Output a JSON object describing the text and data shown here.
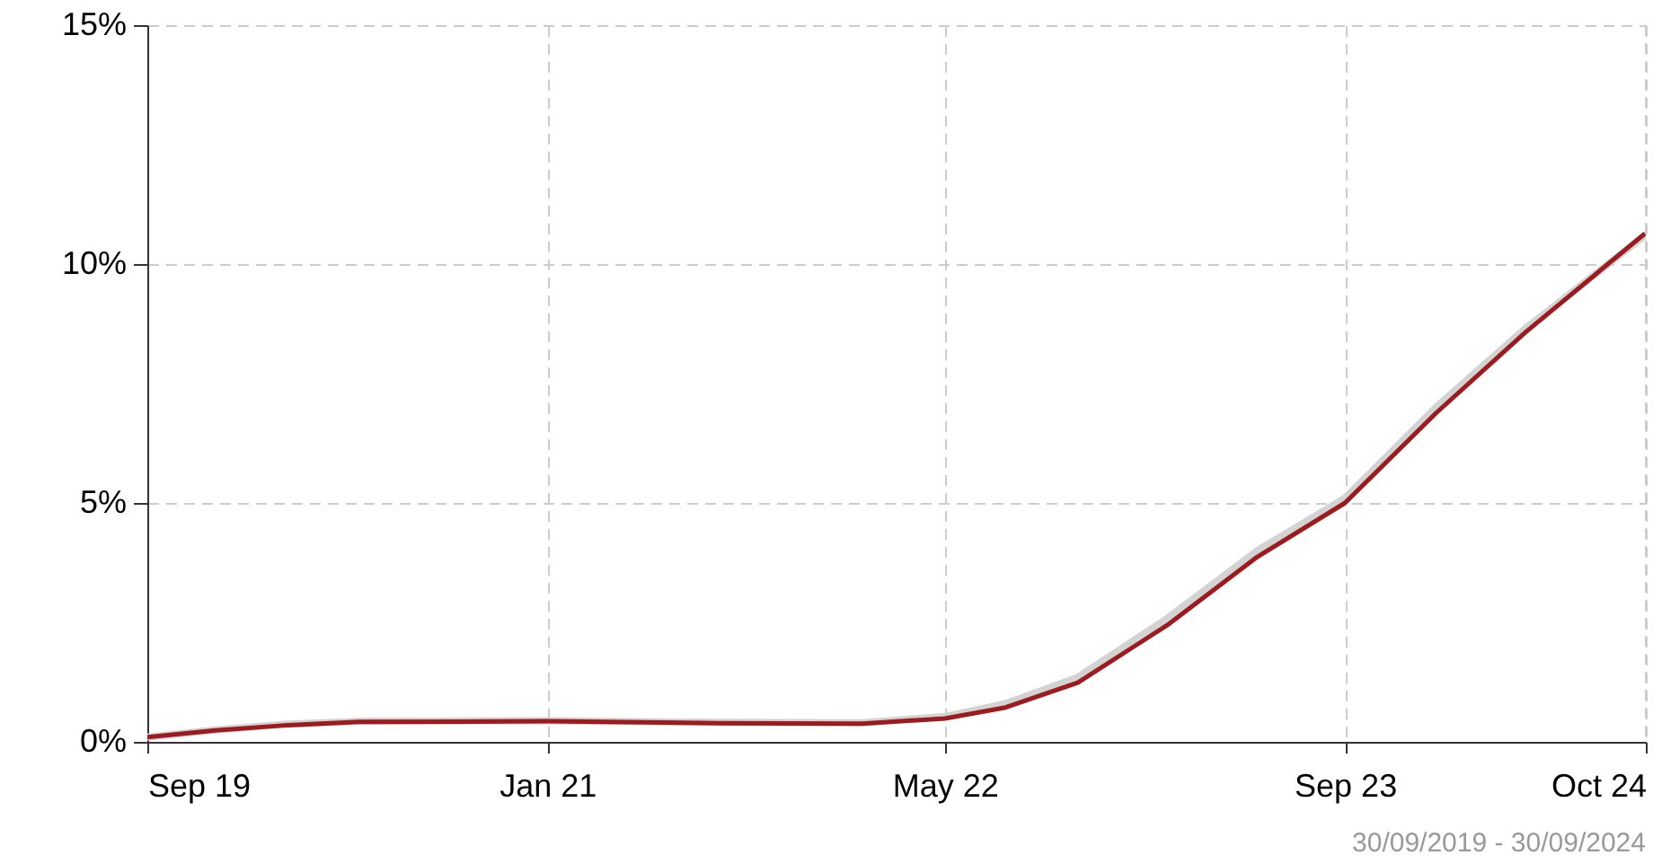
{
  "chart_data": {
    "type": "line",
    "x": [
      "2019-09-30",
      "2019-12-22",
      "2020-03-19",
      "2020-06-14",
      "2021-01-30",
      "2021-08-27",
      "2022-02-18",
      "2022-05-30",
      "2022-08-12",
      "2022-11-08",
      "2023-02-25",
      "2023-06-15",
      "2023-09-30",
      "2024-01-19",
      "2024-05-07",
      "2024-09-30"
    ],
    "series": [
      {
        "color": "#d3d3d3",
        "values": [
          0.1,
          0.25,
          0.37,
          0.43,
          0.44,
          0.41,
          0.4,
          0.53,
          0.8,
          1.35,
          2.58,
          4.0,
          5.1,
          7.0,
          8.65,
          10.6
        ]
      },
      {
        "color": "#9b1b1f",
        "values": [
          0.1,
          0.24,
          0.35,
          0.42,
          0.43,
          0.39,
          0.38,
          0.49,
          0.72,
          1.24,
          2.44,
          3.87,
          5.0,
          6.88,
          8.57,
          10.64
        ]
      }
    ],
    "xlim": [
      "2019-09-30",
      "2024-10-01"
    ],
    "xticks": [
      {
        "value": "2019-09-30",
        "label": "Sep 19"
      },
      {
        "value": "2021-01-30",
        "label": "Jan 21"
      },
      {
        "value": "2022-05-30",
        "label": "May 22"
      },
      {
        "value": "2023-09-30",
        "label": "Sep 23"
      },
      {
        "value": "2024-10-01",
        "label": "Oct 24"
      }
    ],
    "ylim": [
      0,
      15
    ],
    "yticks": [
      {
        "value": 0,
        "label": "0%"
      },
      {
        "value": 5,
        "label": "5%"
      },
      {
        "value": 10,
        "label": "10%"
      },
      {
        "value": 15,
        "label": "15%"
      }
    ],
    "grid": true,
    "line_style": "solid",
    "annotations": [
      "30/09/2019 - 30/09/2024"
    ]
  }
}
